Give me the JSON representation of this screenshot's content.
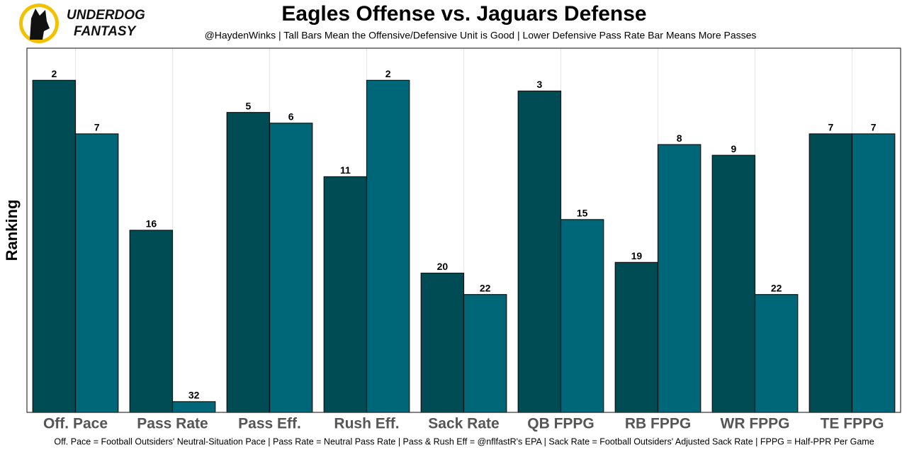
{
  "logo": {
    "line1": "UNDERDOG",
    "line2": "FANTASY"
  },
  "chart_data": {
    "type": "bar",
    "title": "Eagles Offense vs. Jaguars Defense",
    "subtitle": "@HaydenWinks | Tall Bars Mean the Offensive/Defensive Unit is Good | Lower Defensive Pass Rate Bar Means More Passes",
    "y_label": "Ranking",
    "footnote": "Off. Pace = Football Outsiders' Neutral-Situation Pace | Pass Rate = Neutral Pass Rate | Pass & Rush Eff = @nflfastR's EPA | Sack Rate = Football Outsiders' Adjusted Sack Rate | FPPG = Half-PPR Per Game",
    "categories": [
      "Off. Pace",
      "Pass Rate",
      "Pass Eff.",
      "Rush Eff.",
      "Sack Rate",
      "QB FPPG",
      "RB FPPG",
      "WR FPPG",
      "TE FPPG"
    ],
    "series": [
      {
        "color": "#004c54",
        "values": [
          2,
          16,
          5,
          11,
          20,
          3,
          19,
          9,
          7
        ]
      },
      {
        "color": "#006778",
        "values": [
          7,
          32,
          6,
          2,
          22,
          15,
          8,
          22,
          7
        ]
      }
    ],
    "ylim": [
      33,
      -1
    ]
  }
}
